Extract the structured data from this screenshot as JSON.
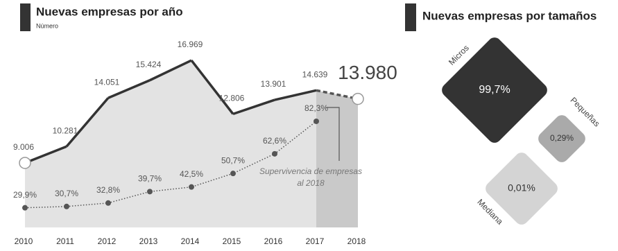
{
  "chart_data": [
    {
      "type": "line",
      "title": "Nuevas empresas por año",
      "subtitle": "Número",
      "categories": [
        "2010",
        "2011",
        "2012",
        "2013",
        "2014",
        "2015",
        "2016",
        "2017",
        "2018"
      ],
      "series": [
        {
          "color": "#333333",
          "values": [
            9006,
            10281,
            14051,
            15424,
            16969,
            12806,
            13901,
            14639,
            13980
          ],
          "value_labels": [
            "9.006",
            "10.281",
            "14.051",
            "15.424",
            "16.969",
            "12.806",
            "13.901",
            "14.639",
            "13.980"
          ]
        },
        {
          "name": "Supervivencia de empresas al 2018",
          "color": "#555555",
          "axis": "y2",
          "values": [
            29.9,
            30.7,
            32.8,
            39.7,
            42.5,
            50.7,
            62.6,
            82.3,
            null
          ],
          "value_labels": [
            "29,9%",
            "30,7%",
            "32,8%",
            "39,7%",
            "42,5%",
            "50,7%",
            "62,6%",
            "82,3%",
            null
          ]
        }
      ],
      "ylim": [
        4000,
        19500
      ],
      "y2lim": [
        18,
        139
      ]
    },
    {
      "type": "diamonds",
      "title": "Nuevas empresas por tamaños",
      "categories": [
        "Micros",
        "Pequeñas",
        "Mediana"
      ],
      "values": [
        99.7,
        0.29,
        0.01
      ],
      "value_labels": [
        "99,7%",
        "0,29%",
        "0,01%"
      ],
      "colors": [
        "#333333",
        "#aaaaaa",
        "#d4d4d4"
      ]
    }
  ]
}
